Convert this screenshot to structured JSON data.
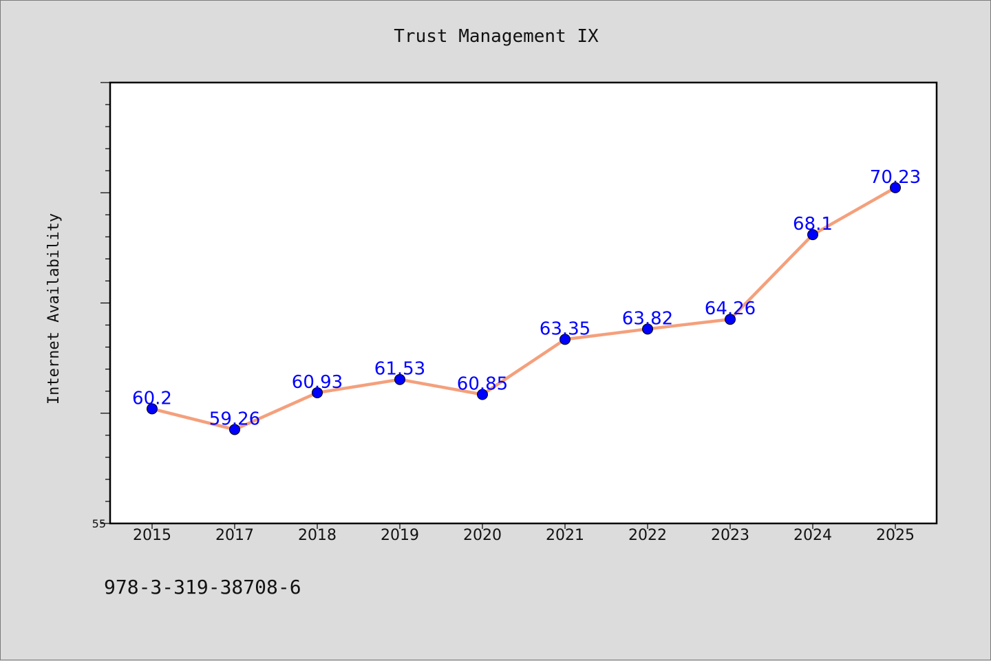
{
  "chart_data": {
    "type": "line",
    "title": "Trust Management IX",
    "ylabel": "Internet Availability",
    "xlabel": "",
    "categories": [
      "2015",
      "2017",
      "2018",
      "2019",
      "2020",
      "2021",
      "2022",
      "2023",
      "2024",
      "2025"
    ],
    "series": [
      {
        "values": [
          60.2,
          59.26,
          60.93,
          61.53,
          60.85,
          63.35,
          63.82,
          64.26,
          68.1,
          70.23
        ]
      }
    ],
    "data_labels": [
      "60.2",
      "59.26",
      "60.93",
      "61.53",
      "60.85",
      "63.35",
      "63.82",
      "64.26",
      "68.1",
      "70.23"
    ],
    "ylim": [
      55,
      75
    ],
    "y_tick_label": "55",
    "grid": false,
    "colors": {
      "line": "#f4a07c",
      "marker": "#0000ff",
      "label": "#0000ff",
      "background": "#dcdcdc",
      "plot": "#ffffff"
    }
  },
  "footer": {
    "text": "978-3-319-38708-6"
  }
}
